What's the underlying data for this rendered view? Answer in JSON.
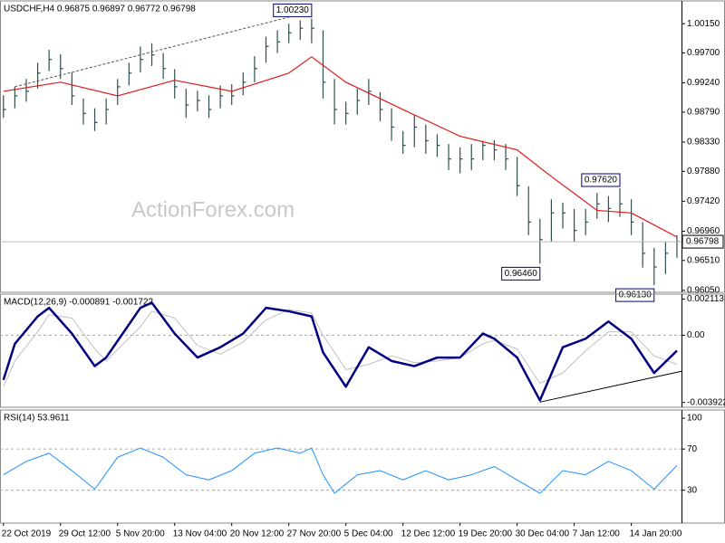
{
  "chart_data": [
    {
      "type": "hlc",
      "title": "USDCHF,H4 0.96875 0.96897 0.96772 0.96798",
      "watermark": "ActionForex.com",
      "xlim": [
        -0.3,
        59.4
      ],
      "ylim": [
        0.9602,
        1.005
      ],
      "yticks": [
        {
          "value": 1.0015,
          "label": "1.00150"
        },
        {
          "value": 0.997,
          "label": "0.99700"
        },
        {
          "value": 0.9924,
          "label": "0.99240"
        },
        {
          "value": 0.9879,
          "label": "0.98790"
        },
        {
          "value": 0.9833,
          "label": "0.98330"
        },
        {
          "value": 0.9788,
          "label": "0.97880"
        },
        {
          "value": 0.9742,
          "label": "0.97420"
        },
        {
          "value": 0.9696,
          "label": "0.96960"
        },
        {
          "value": 0.9651,
          "label": "0.96510"
        },
        {
          "value": 0.9605,
          "label": "0.96050"
        }
      ],
      "color": "#2f4f4f",
      "high": [
        0.9905,
        0.9918,
        0.993,
        0.9955,
        0.9975,
        0.9968,
        0.994,
        0.99,
        0.9885,
        0.99,
        0.993,
        0.9955,
        0.998,
        0.9985,
        0.997,
        0.9945,
        0.9915,
        0.9912,
        0.9905,
        0.992,
        0.9922,
        0.994,
        0.9965,
        0.9995,
        1.0005,
        1.0015,
        1.002,
        1.0023,
        1.0005,
        0.993,
        0.9895,
        0.9915,
        0.993,
        0.991,
        0.9885,
        0.985,
        0.9875,
        0.986,
        0.9845,
        0.983,
        0.9825,
        0.983,
        0.9835,
        0.9836,
        0.983,
        0.981,
        0.9765,
        0.9715,
        0.9745,
        0.974,
        0.973,
        0.973,
        0.9755,
        0.975,
        0.9762,
        0.9745,
        0.971,
        0.967,
        0.968,
        0.969
      ],
      "low": [
        0.987,
        0.9885,
        0.9895,
        0.9915,
        0.9942,
        0.993,
        0.989,
        0.986,
        0.985,
        0.986,
        0.989,
        0.992,
        0.994,
        0.995,
        0.993,
        0.99,
        0.987,
        0.988,
        0.987,
        0.9885,
        0.989,
        0.9905,
        0.9925,
        0.9955,
        0.997,
        0.9985,
        0.999,
        0.9985,
        0.99,
        0.986,
        0.986,
        0.9875,
        0.989,
        0.9865,
        0.9835,
        0.9815,
        0.9825,
        0.9815,
        0.981,
        0.979,
        0.9785,
        0.979,
        0.9805,
        0.9805,
        0.979,
        0.975,
        0.969,
        0.9646,
        0.968,
        0.97,
        0.968,
        0.969,
        0.9715,
        0.971,
        0.9718,
        0.969,
        0.964,
        0.9613,
        0.963,
        0.9655
      ],
      "close": [
        0.9883,
        0.9904,
        0.9911,
        0.9939,
        0.996,
        0.9946,
        0.9904,
        0.9877,
        0.9863,
        0.9883,
        0.9918,
        0.9939,
        0.996,
        0.9967,
        0.9946,
        0.9918,
        0.989,
        0.9897,
        0.9883,
        0.9904,
        0.9904,
        0.9925,
        0.9946,
        0.998,
        0.9987,
        1.0001,
        1.0008,
        1.0008,
        0.9925,
        0.9883,
        0.9877,
        0.9897,
        0.9911,
        0.9883,
        0.9856,
        0.9828,
        0.9856,
        0.9835,
        0.9828,
        0.9807,
        0.9807,
        0.9807,
        0.9828,
        0.9821,
        0.9807,
        0.9766,
        0.971,
        0.9683,
        0.9724,
        0.9724,
        0.9697,
        0.971,
        0.9738,
        0.9731,
        0.9738,
        0.971,
        0.9662,
        0.9641,
        0.9662,
        0.968
      ],
      "last_price": 0.96798,
      "ma": {
        "color": "#e01818",
        "x": [
          0,
          5,
          10,
          15,
          20,
          25,
          27,
          30,
          35,
          40,
          45,
          48,
          52,
          55,
          59
        ],
        "values": [
          0.9911,
          0.9925,
          0.9904,
          0.9928,
          0.9911,
          0.9939,
          0.9964,
          0.9925,
          0.9883,
          0.9842,
          0.9821,
          0.978,
          0.9728,
          0.9724,
          0.9687
        ]
      },
      "trendline": {
        "x": [
          1,
          25
        ],
        "values": [
          0.9918,
          1.0025
        ]
      },
      "annotations": [
        {
          "x": 27,
          "value": 1.0023,
          "label": "1.00230",
          "side": "above"
        },
        {
          "x": 54,
          "value": 0.9762,
          "label": "0.97620",
          "side": "above"
        },
        {
          "x": 47,
          "value": 0.9646,
          "label": "0.96460",
          "side": "below"
        },
        {
          "x": 57,
          "value": 0.9613,
          "label": "0.96130",
          "side": "below"
        }
      ]
    },
    {
      "type": "line",
      "title": "MACD(12,26,9) -0.000891 -0.001722",
      "xlim": [
        -0.3,
        59.4
      ],
      "ylim": [
        -0.0042,
        0.0024
      ],
      "yticks": [
        0.002113,
        {
          "value": 0,
          "label": "0.00"
        },
        -0.003922
      ],
      "grid_levels": [
        0
      ],
      "series": [
        {
          "color": "#c0c0c0",
          "width": 1,
          "x": [
            0,
            1,
            3,
            4,
            6,
            8,
            9,
            12,
            13,
            15,
            17,
            19,
            21,
            23,
            25,
            27,
            28,
            30,
            32,
            34,
            36,
            38,
            40,
            42,
            43,
            45,
            47,
            49,
            51,
            53,
            55,
            57,
            59
          ],
          "values": [
            -0.003,
            -0.0015,
            0.0002,
            0.0012,
            0.001,
            -0.0008,
            -0.0015,
            0.0005,
            0.0014,
            0.001,
            -0.0006,
            -0.0011,
            -0.0004,
            0.0009,
            0.0015,
            0.0013,
            0.0,
            -0.002,
            -0.0017,
            -0.0012,
            -0.0016,
            -0.0015,
            -0.0013,
            -0.0005,
            -0.0003,
            -0.0008,
            -0.0028,
            -0.0022,
            -0.0009,
            0.0002,
            0.0002,
            -0.0012,
            -0.0017
          ]
        },
        {
          "color": "#000080",
          "width": 2.5,
          "x": [
            0,
            1,
            3,
            4,
            6,
            8,
            9,
            12,
            13,
            15,
            17,
            19,
            21,
            23,
            25,
            27,
            28,
            30,
            32,
            34,
            36,
            38,
            40,
            42,
            43,
            45,
            47,
            49,
            51,
            53,
            55,
            57,
            59
          ],
          "values": [
            -0.0026,
            -0.0005,
            0.0011,
            0.0016,
            0.0001,
            -0.0018,
            -0.0013,
            0.0016,
            0.0019,
            0.0001,
            -0.0013,
            -0.0007,
            0.0001,
            0.0016,
            0.0014,
            0.0011,
            -0.001,
            -0.003,
            -0.0007,
            -0.0015,
            -0.0018,
            -0.0013,
            -0.0013,
            0.0001,
            -0.0002,
            -0.0013,
            -0.0038,
            -0.0007,
            -0.0002,
            0.0008,
            -0.0002,
            -0.0022,
            -0.0009
          ]
        }
      ],
      "trendline": {
        "x": [
          47,
          59.4
        ],
        "values": [
          -0.0039,
          -0.0021
        ]
      }
    },
    {
      "type": "line",
      "title": "RSI(14) 53.9611",
      "xlim": [
        -0.3,
        59.4
      ],
      "ylim": [
        -2,
        108
      ],
      "yticks": [
        100,
        70,
        30
      ],
      "grid_levels": [
        70,
        30
      ],
      "series": [
        {
          "color": "#1e90ff",
          "width": 1,
          "x": [
            0,
            2,
            4,
            6,
            8,
            10,
            12,
            14,
            16,
            18,
            20,
            22,
            24,
            26,
            27,
            28,
            29,
            31,
            33,
            35,
            37,
            39,
            41,
            43,
            45,
            47,
            49,
            51,
            53,
            55,
            57,
            59
          ],
          "values": [
            45,
            58,
            66,
            49,
            31,
            62,
            71,
            62,
            45,
            40,
            49,
            66,
            71,
            66,
            71,
            45,
            27,
            45,
            49,
            40,
            49,
            40,
            45,
            53,
            40,
            27,
            49,
            45,
            58,
            49,
            31,
            53.9611
          ]
        }
      ],
      "xticks": [
        {
          "value": 0,
          "label": "22 Oct 2019"
        },
        {
          "value": 5,
          "label": "29 Oct 12:00"
        },
        {
          "value": 10,
          "label": "5 Nov 20:00"
        },
        {
          "value": 15,
          "label": "13 Nov 04:00"
        },
        {
          "value": 20,
          "label": "20 Nov 12:00"
        },
        {
          "value": 25,
          "label": "27 Nov 20:00"
        },
        {
          "value": 30,
          "label": "5 Dec 04:00"
        },
        {
          "value": 35,
          "label": "12 Dec 12:00"
        },
        {
          "value": 40,
          "label": "19 Dec 20:00"
        },
        {
          "value": 45,
          "label": "30 Dec 04:00"
        },
        {
          "value": 50,
          "label": "7 Jan 12:00"
        },
        {
          "value": 55,
          "label": "14 Jan 20:00"
        }
      ]
    }
  ]
}
